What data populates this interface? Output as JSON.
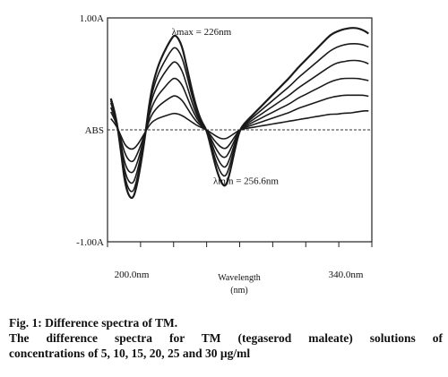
{
  "chart_data": {
    "type": "line",
    "ylabels": {
      "top": "1.00A",
      "mid": "ABS",
      "bottom": "-1.00A"
    },
    "ylim": [
      -1.0,
      1.0
    ],
    "xlim": [
      185,
      345
    ],
    "xlabels": {
      "left": "200.0nm",
      "right": "340.0nm"
    },
    "xtitle": "Wavelength",
    "xunit": "(nm)",
    "annotations": [
      {
        "text": "λmax = 226nm",
        "x": 226,
        "y": 0.88
      },
      {
        "text": "λmin = 256.6nm",
        "x": 256.6,
        "y": -0.45
      }
    ],
    "baseline": 0,
    "x": [
      187,
      190,
      193,
      196,
      200,
      203,
      207,
      211,
      215,
      219,
      223,
      226,
      230,
      233,
      236,
      239,
      242,
      245,
      248,
      251,
      254,
      256.6,
      259,
      262,
      265,
      268,
      272,
      276,
      280,
      284,
      288,
      292,
      296,
      300,
      304,
      308,
      312,
      316,
      320,
      324,
      328,
      332,
      336,
      340,
      343
    ],
    "series": [
      {
        "values": [
          0.1,
          0.05,
          -0.05,
          -0.15,
          -0.18,
          -0.14,
          -0.04,
          0.06,
          0.1,
          0.12,
          0.14,
          0.15,
          0.13,
          0.1,
          0.07,
          0.04,
          0.02,
          0.0,
          -0.03,
          -0.06,
          -0.08,
          -0.08,
          -0.06,
          -0.03,
          0.0,
          0.01,
          0.02,
          0.03,
          0.04,
          0.05,
          0.06,
          0.07,
          0.08,
          0.09,
          0.1,
          0.11,
          0.12,
          0.13,
          0.14,
          0.14,
          0.15,
          0.15,
          0.16,
          0.17,
          0.17
        ]
      },
      {
        "values": [
          0.16,
          0.08,
          -0.08,
          -0.24,
          -0.3,
          -0.22,
          -0.06,
          0.12,
          0.2,
          0.25,
          0.29,
          0.31,
          0.27,
          0.2,
          0.13,
          0.07,
          0.03,
          0.0,
          -0.06,
          -0.12,
          -0.16,
          -0.17,
          -0.13,
          -0.06,
          0.0,
          0.02,
          0.04,
          0.06,
          0.08,
          0.1,
          0.12,
          0.14,
          0.16,
          0.19,
          0.21,
          0.23,
          0.25,
          0.27,
          0.29,
          0.3,
          0.31,
          0.31,
          0.31,
          0.31,
          0.3
        ]
      },
      {
        "values": [
          0.2,
          0.1,
          -0.12,
          -0.34,
          -0.4,
          -0.3,
          -0.08,
          0.18,
          0.3,
          0.37,
          0.44,
          0.47,
          0.41,
          0.3,
          0.19,
          0.1,
          0.04,
          0.0,
          -0.09,
          -0.18,
          -0.24,
          -0.25,
          -0.19,
          -0.09,
          0.0,
          0.03,
          0.06,
          0.09,
          0.12,
          0.15,
          0.18,
          0.21,
          0.24,
          0.28,
          0.31,
          0.34,
          0.37,
          0.4,
          0.43,
          0.45,
          0.46,
          0.46,
          0.46,
          0.45,
          0.44
        ]
      },
      {
        "values": [
          0.24,
          0.12,
          -0.15,
          -0.42,
          -0.5,
          -0.38,
          -0.1,
          0.24,
          0.4,
          0.5,
          0.58,
          0.62,
          0.54,
          0.4,
          0.25,
          0.13,
          0.05,
          0.0,
          -0.12,
          -0.24,
          -0.32,
          -0.34,
          -0.26,
          -0.12,
          0.0,
          0.04,
          0.08,
          0.12,
          0.16,
          0.2,
          0.24,
          0.28,
          0.32,
          0.37,
          0.41,
          0.45,
          0.49,
          0.53,
          0.57,
          0.6,
          0.61,
          0.62,
          0.62,
          0.61,
          0.59
        ]
      },
      {
        "values": [
          0.26,
          0.13,
          -0.17,
          -0.48,
          -0.58,
          -0.44,
          -0.12,
          0.28,
          0.48,
          0.6,
          0.7,
          0.75,
          0.66,
          0.49,
          0.31,
          0.16,
          0.06,
          0.0,
          -0.15,
          -0.3,
          -0.4,
          -0.42,
          -0.32,
          -0.15,
          0.0,
          0.05,
          0.1,
          0.15,
          0.2,
          0.25,
          0.3,
          0.35,
          0.4,
          0.46,
          0.51,
          0.56,
          0.61,
          0.66,
          0.71,
          0.74,
          0.76,
          0.77,
          0.77,
          0.76,
          0.74
        ]
      },
      {
        "values": [
          0.28,
          0.14,
          -0.18,
          -0.53,
          -0.64,
          -0.49,
          -0.14,
          0.32,
          0.55,
          0.69,
          0.8,
          0.86,
          0.76,
          0.56,
          0.36,
          0.19,
          0.07,
          0.0,
          -0.18,
          -0.36,
          -0.48,
          -0.51,
          -0.39,
          -0.18,
          0.0,
          0.06,
          0.12,
          0.18,
          0.24,
          0.3,
          0.36,
          0.42,
          0.48,
          0.55,
          0.61,
          0.67,
          0.73,
          0.79,
          0.85,
          0.88,
          0.9,
          0.91,
          0.91,
          0.89,
          0.86
        ]
      }
    ]
  },
  "caption": {
    "title": "Fig. 1: Difference spectra of TM.",
    "line2": "The difference spectra for TM (tegaserod maleate) solutions of",
    "line3": "concentrations of 5, 10, 15, 20, 25 and 30 µg/ml"
  }
}
